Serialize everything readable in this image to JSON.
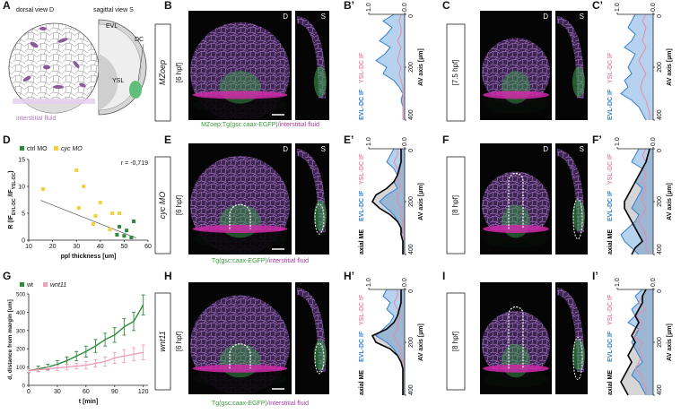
{
  "panel_labels": [
    "A",
    "B",
    "B’",
    "C",
    "C’",
    "D",
    "E",
    "E’",
    "F",
    "F’",
    "G",
    "H",
    "H’",
    "I",
    "I’"
  ],
  "schematic": {
    "dorsal_title": "dorsal view D",
    "sagittal_title": "sagittal view S",
    "evl": "EVL",
    "dc": "DC",
    "ysl": "YSL",
    "fluid": "interstitial fluid"
  },
  "images": [
    {
      "condition": "MZoep",
      "stage": "[6 hpf]",
      "views": [
        "D",
        "S"
      ],
      "caption": {
        "green": "MZoep;Tg(gsc:caax-EGFP)",
        "magenta": "/interstitial fluid"
      }
    },
    {
      "stage": "[7.5 hpf]",
      "views": [
        "D",
        "S"
      ]
    },
    {
      "condition": "cyc MO",
      "stage": "[6 hpf]",
      "views": [
        "D",
        "S"
      ],
      "caption": {
        "green": "Tg(gsc:caax-EGFP)",
        "magenta": "/interstitial fluid"
      }
    },
    {
      "stage": "[8 hpf]",
      "views": [
        "D",
        "S"
      ]
    },
    {
      "condition": "wnt11",
      "stage": "[6 hpf]",
      "caption": {
        "green": "Tg(gsc:caax-EGFP)",
        "magenta": "/interstitial fluid"
      }
    },
    {
      "stage": "[8 hpf]"
    }
  ],
  "chart_data": [
    {
      "type": "area",
      "ylabel": "AV axis [µm]",
      "xlim": [
        1,
        0
      ],
      "xticks": [
        {
          "value": 1,
          "label": "1.0"
        },
        {
          "value": 0,
          "label": "0.0"
        }
      ],
      "ylim": [
        0,
        400
      ],
      "yticks": [
        0,
        200,
        400
      ],
      "depths": [
        0,
        25,
        50,
        75,
        100,
        125,
        150,
        175,
        200,
        225,
        250,
        275,
        300,
        325,
        350,
        375,
        400
      ],
      "series": [
        {
          "name": "EVL-DC IF",
          "color": "#2f7fd0",
          "fill": true,
          "values": [
            0.3,
            0.6,
            0.35,
            0.5,
            0.7,
            0.4,
            0.55,
            0.8,
            0.5,
            0.6,
            0.3,
            0.15,
            0.05,
            0.1,
            0.05,
            0.05,
            0.05
          ]
        },
        {
          "name": "YSL-DC IF",
          "color": "#e88aa8",
          "values": [
            0.1,
            0.15,
            0.1,
            0.1,
            0.2,
            0.1,
            0.15,
            0.2,
            0.1,
            0.15,
            0.1,
            0.05,
            0.05,
            0.05,
            0.05,
            0.05,
            0.05
          ]
        }
      ]
    },
    {
      "type": "area",
      "ylabel": "AV axis [µm]",
      "xlim": [
        1,
        0
      ],
      "xticks": [
        {
          "value": 1,
          "label": "1.0"
        },
        {
          "value": 0,
          "label": "0.0"
        }
      ],
      "ylim": [
        0,
        400
      ],
      "yticks": [
        0,
        200,
        400
      ],
      "depths": [
        0,
        25,
        50,
        75,
        100,
        125,
        150,
        175,
        200,
        225,
        250,
        275,
        300,
        325,
        350,
        375,
        400
      ],
      "series": [
        {
          "name": "EVL-DC IF",
          "color": "#2f7fd0",
          "fill": true,
          "values": [
            0.5,
            0.6,
            0.7,
            0.5,
            0.6,
            0.8,
            0.5,
            0.6,
            0.7,
            0.6,
            0.8,
            0.7,
            0.9,
            0.6,
            0.4,
            0.3,
            0.2
          ]
        },
        {
          "name": "YSL-DC IF",
          "color": "#e88aa8",
          "values": [
            0.2,
            0.3,
            0.2,
            0.25,
            0.3,
            0.2,
            0.3,
            0.4,
            0.3,
            0.2,
            0.3,
            0.35,
            0.3,
            0.2,
            0.15,
            0.1,
            0.1
          ]
        }
      ]
    },
    {
      "type": "area",
      "ylabel": "AV axis [µm]",
      "xlim": [
        1,
        0
      ],
      "xticks": [
        {
          "value": 1,
          "label": "1.0"
        },
        {
          "value": 0,
          "label": "0.0"
        }
      ],
      "ylim": [
        0,
        400
      ],
      "yticks": [
        0,
        200,
        400
      ],
      "depths": [
        0,
        25,
        50,
        75,
        100,
        125,
        150,
        175,
        200,
        225,
        250,
        275,
        300,
        325,
        350,
        375,
        400
      ],
      "series": [
        {
          "name": "axial ME",
          "color": "#000000",
          "fill": true,
          "values": [
            0.1,
            0.1,
            0.1,
            0.15,
            0.2,
            0.3,
            0.5,
            0.8,
            0.9,
            0.7,
            0.4,
            0.2,
            0.1,
            0.1,
            0.05,
            0.05,
            0.05
          ]
        },
        {
          "name": "EVL-DC IF",
          "color": "#2f7fd0",
          "fill": true,
          "values": [
            0.3,
            0.4,
            0.5,
            0.3,
            0.2,
            0.3,
            0.2,
            0.5,
            0.7,
            0.5,
            0.3,
            0.2,
            0.1,
            0.05,
            0.05,
            0.05,
            0.05
          ]
        },
        {
          "name": "YSL-DC IF",
          "color": "#e88aa8",
          "values": [
            0.2,
            0.2,
            0.3,
            0.2,
            0.1,
            0.2,
            0.1,
            0.2,
            0.2,
            0.1,
            0.1,
            0.05,
            0.05,
            0.05,
            0.05,
            0.05,
            0.05
          ]
        }
      ]
    },
    {
      "type": "area",
      "ylabel": "AV axis [µm]",
      "xlim": [
        1,
        0
      ],
      "xticks": [
        {
          "value": 1,
          "label": "1.0"
        },
        {
          "value": 0,
          "label": "0.0"
        }
      ],
      "ylim": [
        0,
        400
      ],
      "yticks": [
        0,
        200,
        400
      ],
      "depths": [
        0,
        25,
        50,
        75,
        100,
        125,
        150,
        175,
        200,
        225,
        250,
        275,
        300,
        325,
        350,
        375,
        400
      ],
      "series": [
        {
          "name": "axial ME",
          "color": "#000000",
          "fill": true,
          "values": [
            0.1,
            0.15,
            0.2,
            0.3,
            0.4,
            0.5,
            0.6,
            0.7,
            0.8,
            0.8,
            0.7,
            0.6,
            0.5,
            0.4,
            0.3,
            0.5,
            0.6
          ]
        },
        {
          "name": "EVL-DC IF",
          "color": "#2f7fd0",
          "fill": true,
          "values": [
            0.4,
            0.5,
            0.6,
            0.3,
            0.4,
            0.5,
            0.3,
            0.4,
            0.5,
            0.6,
            0.4,
            0.5,
            0.7,
            0.9,
            0.8,
            0.6,
            0.4
          ]
        },
        {
          "name": "YSL-DC IF",
          "color": "#e88aa8",
          "values": [
            0.2,
            0.3,
            0.2,
            0.3,
            0.2,
            0.3,
            0.2,
            0.3,
            0.3,
            0.2,
            0.3,
            0.4,
            0.3,
            0.2,
            0.2,
            0.2,
            0.1
          ]
        }
      ]
    },
    {
      "type": "area",
      "ylabel": "AV axis [µm]",
      "xlim": [
        1,
        0
      ],
      "xticks": [
        {
          "value": 1,
          "label": "1.0"
        },
        {
          "value": 0,
          "label": "0.0"
        }
      ],
      "ylim": [
        0,
        400
      ],
      "yticks": [
        0,
        200,
        400
      ],
      "depths": [
        0,
        25,
        50,
        75,
        100,
        125,
        150,
        175,
        200,
        225,
        250,
        275,
        300,
        325,
        350,
        375,
        400
      ],
      "series": [
        {
          "name": "axial ME",
          "color": "#000000",
          "fill": true,
          "values": [
            0.1,
            0.1,
            0.1,
            0.15,
            0.2,
            0.3,
            0.5,
            0.9,
            0.8,
            0.4,
            0.2,
            0.1,
            0.05,
            0.05,
            0.05,
            0.05,
            0.05
          ]
        },
        {
          "name": "EVL-DC IF",
          "color": "#2f7fd0",
          "fill": true,
          "values": [
            0.5,
            0.6,
            0.4,
            0.5,
            0.3,
            0.4,
            0.6,
            0.8,
            0.5,
            0.3,
            0.2,
            0.1,
            0.05,
            0.05,
            0.05,
            0.05,
            0.05
          ]
        },
        {
          "name": "YSL-DC IF",
          "color": "#e88aa8",
          "values": [
            0.2,
            0.2,
            0.3,
            0.2,
            0.1,
            0.2,
            0.2,
            0.3,
            0.2,
            0.1,
            0.1,
            0.05,
            0.05,
            0.05,
            0.05,
            0.05,
            0.05
          ]
        }
      ]
    },
    {
      "type": "area",
      "ylabel": "AV axis [µm]",
      "xlim": [
        1,
        0
      ],
      "xticks": [
        {
          "value": 1,
          "label": "1.0"
        },
        {
          "value": 0,
          "label": "0.0"
        }
      ],
      "ylim": [
        0,
        400
      ],
      "yticks": [
        0,
        200,
        400
      ],
      "depths": [
        0,
        25,
        50,
        75,
        100,
        125,
        150,
        175,
        200,
        225,
        250,
        275,
        300,
        325,
        350,
        375,
        400
      ],
      "series": [
        {
          "name": "axial ME",
          "color": "#000000",
          "fill": true,
          "values": [
            0.2,
            0.3,
            0.3,
            0.4,
            0.5,
            0.4,
            0.5,
            0.6,
            0.5,
            0.6,
            0.7,
            0.6,
            0.7,
            0.8,
            0.9,
            0.8,
            0.7
          ]
        },
        {
          "name": "EVL-DC IF",
          "color": "#2f7fd0",
          "fill": true,
          "values": [
            0.3,
            0.5,
            0.4,
            0.6,
            0.5,
            0.7,
            0.4,
            0.5,
            0.6,
            0.5,
            0.4,
            0.3,
            0.5,
            0.6,
            0.4,
            0.3,
            0.2
          ]
        },
        {
          "name": "YSL-DC IF",
          "color": "#e88aa8",
          "values": [
            0.2,
            0.3,
            0.4,
            0.2,
            0.5,
            0.3,
            0.4,
            0.6,
            0.3,
            0.4,
            0.3,
            0.4,
            0.5,
            0.3,
            0.3,
            0.2,
            0.2
          ]
        }
      ]
    },
    {
      "type": "scatter",
      "xlabel": "ppl thickness [um]",
      "ylabel": [
        "R (IF",
        "EVL-DC",
        " /IF",
        "YSL-DC",
        ")"
      ],
      "annotation": "r = -0,719",
      "xlim": [
        10,
        60
      ],
      "xticks": [
        10,
        20,
        30,
        40,
        50,
        60
      ],
      "ylim": [
        0,
        15
      ],
      "yticks": [
        0,
        5,
        10,
        15
      ],
      "legend": "top-left",
      "series": [
        {
          "name": "ctrl MO",
          "color": "#2e8b3e",
          "x": [
            47,
            48,
            51,
            53,
            54,
            50
          ],
          "values": [
            1,
            2.5,
            1.8,
            0.5,
            3.5,
            0.8
          ]
        },
        {
          "name": "cyc MO",
          "color": "#f2d13b",
          "x": [
            16,
            30,
            31,
            33,
            38,
            40,
            44,
            45,
            48,
            37
          ],
          "values": [
            9.5,
            13,
            6,
            10,
            4.5,
            7,
            2,
            5,
            5,
            3
          ]
        }
      ],
      "trendline": {
        "x": [
          15,
          55
        ],
        "values": [
          7.4,
          0.4
        ]
      }
    },
    {
      "type": "line",
      "xlabel": "t [min]",
      "ylabel": "d, distance from margin [um]",
      "xlim": [
        0,
        125
      ],
      "xticks": [
        0,
        30,
        60,
        90,
        120
      ],
      "ylim": [
        0,
        500
      ],
      "yticks": [
        0,
        100,
        200,
        300,
        400,
        500
      ],
      "legend": "top-left",
      "x": [
        0,
        10,
        20,
        30,
        40,
        50,
        60,
        70,
        80,
        90,
        100,
        110,
        120
      ],
      "series": [
        {
          "name": "wt",
          "color": "#2e8b3e",
          "values": [
            80,
            90,
            100,
            115,
            135,
            160,
            185,
            215,
            250,
            275,
            320,
            350,
            440
          ],
          "errors": [
            10,
            15,
            15,
            20,
            20,
            25,
            30,
            35,
            35,
            40,
            45,
            50,
            55
          ]
        },
        {
          "name": "wnt11",
          "color": "#f0a0bd",
          "values": [
            80,
            85,
            90,
            95,
            100,
            105,
            110,
            120,
            130,
            150,
            160,
            170,
            180
          ],
          "errors": [
            10,
            10,
            10,
            15,
            15,
            15,
            20,
            20,
            25,
            30,
            35,
            35,
            40
          ]
        }
      ]
    }
  ]
}
